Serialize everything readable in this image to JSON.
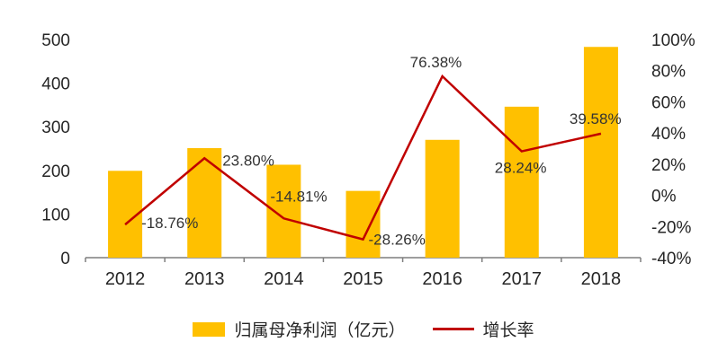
{
  "chart_data": {
    "type": "bar",
    "subtype": "bar+line combo",
    "title": "",
    "categories": [
      "2012",
      "2013",
      "2014",
      "2015",
      "2016",
      "2017",
      "2018"
    ],
    "series": [
      {
        "name": "归属母净利润（亿元）",
        "type": "bar",
        "axis": "left",
        "color": "#FFC000",
        "values": [
          199,
          251,
          213,
          153,
          270,
          346,
          483
        ]
      },
      {
        "name": "增长率",
        "type": "line",
        "axis": "right",
        "color": "#C00000",
        "values": [
          -18.76,
          23.8,
          -14.81,
          -28.26,
          76.38,
          28.24,
          39.58
        ],
        "labels": [
          "-18.76%",
          "23.80%",
          "-14.81%",
          "-28.26%",
          "76.38%",
          "28.24%",
          "39.58%"
        ],
        "label_offsets": [
          [
            18,
            4
          ],
          [
            20,
            8
          ],
          [
            -15,
            -19
          ],
          [
            6,
            6
          ],
          [
            -36,
            -10
          ],
          [
            -30,
            24
          ],
          [
            -35,
            -11
          ]
        ]
      }
    ],
    "left_axis": {
      "min": 0,
      "max": 500,
      "step": 100,
      "ticks": [
        "0",
        "100",
        "200",
        "300",
        "400",
        "500"
      ]
    },
    "right_axis": {
      "min": -40,
      "max": 100,
      "step": 20,
      "ticks": [
        "-40%",
        "-20%",
        "0%",
        "20%",
        "40%",
        "60%",
        "80%",
        "100%"
      ]
    },
    "grid": false,
    "legend_position": "bottom"
  }
}
